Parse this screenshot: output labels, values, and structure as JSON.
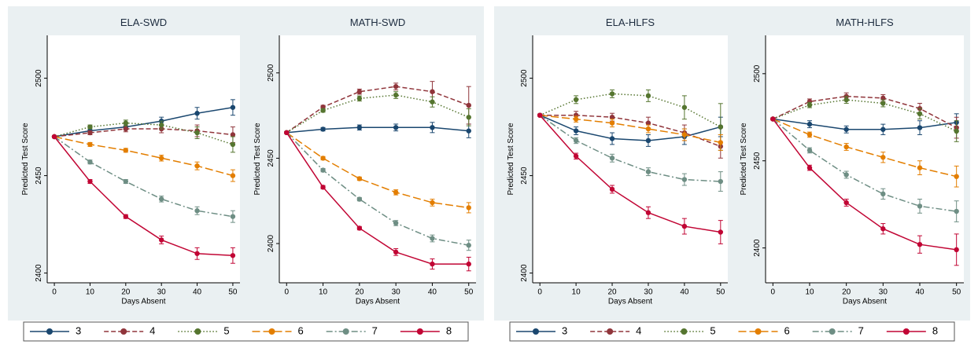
{
  "chart_data": [
    {
      "type": "line",
      "title": "ELA-SWD",
      "xlabel": "Days Absent",
      "ylabel": "Predicted Test Score",
      "x": [
        0,
        10,
        20,
        30,
        40,
        50
      ],
      "xlim": [
        -2,
        52
      ],
      "xticks": [
        0,
        10,
        20,
        30,
        40,
        50
      ],
      "ylim": [
        2395,
        2522
      ],
      "yticks": [
        2400,
        2450,
        2500
      ],
      "markers": true,
      "series": [
        {
          "name": "3",
          "color": "#1a476f",
          "line_style": "solid",
          "values": [
            2470,
            2473,
            2475,
            2478,
            2482,
            2485
          ],
          "errors": [
            0.5,
            1,
            1.5,
            2,
            3,
            4
          ]
        },
        {
          "name": "4",
          "color": "#90353b",
          "line_style": "dash",
          "values": [
            2470,
            2472,
            2474,
            2474,
            2473,
            2471
          ],
          "errors": [
            0.5,
            1,
            1.5,
            2,
            3,
            4
          ]
        },
        {
          "name": "5",
          "color": "#55752f",
          "line_style": "dot",
          "values": [
            2470,
            2475,
            2477,
            2476,
            2472,
            2466
          ],
          "errors": [
            0.5,
            1,
            1.5,
            2,
            3,
            4
          ]
        },
        {
          "name": "6",
          "color": "#e37e00",
          "line_style": "longdash",
          "values": [
            2470,
            2466,
            2463,
            2459,
            2455,
            2450
          ],
          "errors": [
            0.5,
            1,
            1,
            1.5,
            2,
            3
          ]
        },
        {
          "name": "7",
          "color": "#6e8e84",
          "line_style": "dashdot",
          "values": [
            2470,
            2457,
            2447,
            2438,
            2432,
            2429
          ],
          "errors": [
            0.5,
            1,
            1,
            1.5,
            2,
            3
          ]
        },
        {
          "name": "8",
          "color": "#c10534",
          "line_style": "solid",
          "values": [
            2470,
            2447,
            2429,
            2417,
            2410,
            2409
          ],
          "errors": [
            0.5,
            1,
            1,
            2,
            3,
            4
          ]
        }
      ]
    },
    {
      "type": "line",
      "title": "MATH-SWD",
      "xlabel": "Days Absent",
      "ylabel": "Predicted Test Score",
      "x": [
        0,
        10,
        20,
        30,
        40,
        50
      ],
      "xlim": [
        -2,
        52
      ],
      "xticks": [
        0,
        10,
        20,
        30,
        40,
        50
      ],
      "ylim": [
        2377,
        2522
      ],
      "yticks": [
        2400,
        2450,
        2500
      ],
      "markers": true,
      "series": [
        {
          "name": "3",
          "color": "#1a476f",
          "line_style": "solid",
          "values": [
            2465,
            2467,
            2468,
            2468,
            2468,
            2466
          ],
          "errors": [
            0.5,
            1,
            1.5,
            2,
            3,
            4
          ]
        },
        {
          "name": "4",
          "color": "#90353b",
          "line_style": "dash",
          "values": [
            2465,
            2480,
            2489,
            2492,
            2489,
            2481
          ],
          "errors": [
            0.5,
            1,
            1.5,
            2,
            6,
            11
          ]
        },
        {
          "name": "5",
          "color": "#55752f",
          "line_style": "dot",
          "values": [
            2465,
            2478,
            2485,
            2487,
            2483,
            2474
          ],
          "errors": [
            0.5,
            1,
            1.5,
            2,
            3,
            5
          ]
        },
        {
          "name": "6",
          "color": "#e37e00",
          "line_style": "longdash",
          "values": [
            2465,
            2450,
            2438,
            2430,
            2424,
            2421
          ],
          "errors": [
            0.5,
            1,
            1,
            1.5,
            2,
            3
          ]
        },
        {
          "name": "7",
          "color": "#6e8e84",
          "line_style": "dashdot",
          "values": [
            2465,
            2443,
            2426,
            2412,
            2403,
            2399
          ],
          "errors": [
            0.5,
            1,
            1,
            1.5,
            2,
            3
          ]
        },
        {
          "name": "8",
          "color": "#c10534",
          "line_style": "solid",
          "values": [
            2465,
            2433,
            2409,
            2395,
            2388,
            2388
          ],
          "errors": [
            0.5,
            1,
            1,
            2,
            3,
            4
          ]
        }
      ]
    },
    {
      "type": "line",
      "title": "ELA-HLFS",
      "xlabel": "Days Absent",
      "ylabel": "Predicted Test Score",
      "x": [
        0,
        10,
        20,
        30,
        40,
        50
      ],
      "xlim": [
        -2,
        52
      ],
      "xticks": [
        0,
        10,
        20,
        30,
        40,
        50
      ],
      "ylim": [
        2395,
        2522
      ],
      "yticks": [
        2400,
        2450,
        2500
      ],
      "markers": true,
      "series": [
        {
          "name": "3",
          "color": "#1a476f",
          "line_style": "solid",
          "values": [
            2481,
            2473,
            2469,
            2468,
            2470,
            2475
          ],
          "errors": [
            0.5,
            2,
            3,
            3,
            4,
            5
          ]
        },
        {
          "name": "4",
          "color": "#90353b",
          "line_style": "dash",
          "values": [
            2481,
            2481,
            2480,
            2477,
            2472,
            2465
          ],
          "errors": [
            0.5,
            2,
            2,
            3,
            4,
            6
          ]
        },
        {
          "name": "5",
          "color": "#55752f",
          "line_style": "dot",
          "values": [
            2481,
            2489,
            2492,
            2491,
            2485,
            2475
          ],
          "errors": [
            0.5,
            2,
            2,
            3,
            6,
            12
          ]
        },
        {
          "name": "6",
          "color": "#e37e00",
          "line_style": "longdash",
          "values": [
            2481,
            2479,
            2477,
            2474,
            2471,
            2467
          ],
          "errors": [
            0.5,
            1.5,
            2,
            2,
            3,
            4
          ]
        },
        {
          "name": "7",
          "color": "#6e8e84",
          "line_style": "dashdot",
          "values": [
            2481,
            2468,
            2459,
            2452,
            2448,
            2447
          ],
          "errors": [
            0.5,
            1.5,
            2,
            2,
            3,
            5
          ]
        },
        {
          "name": "8",
          "color": "#c10534",
          "line_style": "solid",
          "values": [
            2481,
            2460,
            2443,
            2431,
            2424,
            2421
          ],
          "errors": [
            0.5,
            1.5,
            2,
            3,
            4,
            6
          ]
        }
      ]
    },
    {
      "type": "line",
      "title": "MATH-HLFS",
      "xlabel": "Days Absent",
      "ylabel": "Predicted Test Score",
      "x": [
        0,
        10,
        20,
        30,
        40,
        50
      ],
      "xlim": [
        -2,
        52
      ],
      "xticks": [
        0,
        10,
        20,
        30,
        40,
        50
      ],
      "ylim": [
        2380,
        2522
      ],
      "yticks": [
        2400,
        2450,
        2500
      ],
      "markers": true,
      "series": [
        {
          "name": "3",
          "color": "#1a476f",
          "line_style": "solid",
          "values": [
            2474,
            2471,
            2468,
            2468,
            2469,
            2472
          ],
          "errors": [
            0.5,
            2,
            2,
            3,
            4,
            5
          ]
        },
        {
          "name": "4",
          "color": "#90353b",
          "line_style": "dash",
          "values": [
            2474,
            2484,
            2487,
            2486,
            2480,
            2469
          ],
          "errors": [
            0.5,
            1.5,
            2,
            2,
            3,
            6
          ]
        },
        {
          "name": "5",
          "color": "#55752f",
          "line_style": "dot",
          "values": [
            2474,
            2482,
            2485,
            2483,
            2477,
            2467
          ],
          "errors": [
            0.5,
            1.5,
            2,
            2,
            3,
            6
          ]
        },
        {
          "name": "6",
          "color": "#e37e00",
          "line_style": "longdash",
          "values": [
            2474,
            2465,
            2458,
            2452,
            2446,
            2441
          ],
          "errors": [
            0.5,
            1.5,
            2,
            3,
            4,
            6
          ]
        },
        {
          "name": "7",
          "color": "#6e8e84",
          "line_style": "dashdot",
          "values": [
            2474,
            2456,
            2442,
            2431,
            2424,
            2421
          ],
          "errors": [
            0.5,
            1.5,
            2,
            3,
            4,
            6
          ]
        },
        {
          "name": "8",
          "color": "#c10534",
          "line_style": "solid",
          "values": [
            2474,
            2446,
            2426,
            2411,
            2402,
            2399
          ],
          "errors": [
            0.5,
            1.5,
            2,
            3,
            5,
            9
          ]
        }
      ]
    }
  ]
}
